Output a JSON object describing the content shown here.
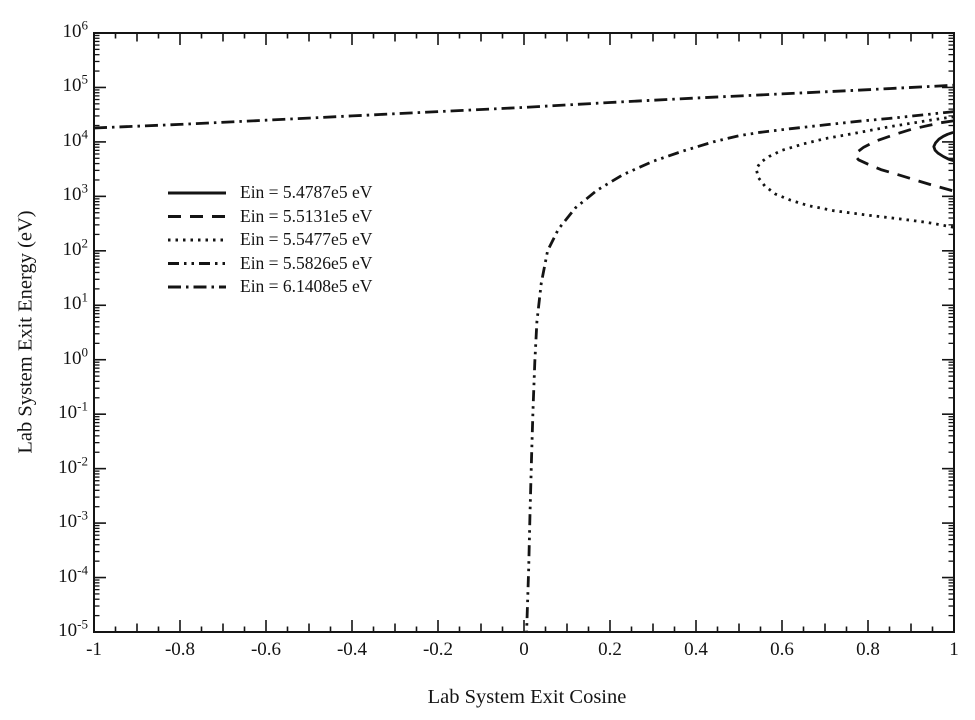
{
  "figure": {
    "background": "#ffffff",
    "ink": "#141414"
  },
  "chart_data": {
    "type": "line",
    "title": "",
    "xlabel": "Lab System Exit Cosine",
    "ylabel": "Lab System Exit Energy (eV)",
    "grid": false,
    "legend_position": "inside upper-left",
    "x_axis": {
      "min": -1,
      "max": 1,
      "major_step": 0.2,
      "medium_step": 0.1,
      "minor_step": 0.05,
      "tick_labels": [
        "-1",
        "-0.8",
        "-0.6",
        "-0.4",
        "-0.2",
        "0",
        "0.2",
        "0.4",
        "0.6",
        "0.8",
        "1"
      ]
    },
    "y_axis": {
      "scale": "log",
      "base": "10",
      "min_exp": -5,
      "max_exp": 6,
      "exponents": [
        6,
        5,
        4,
        3,
        2,
        1,
        0,
        -1,
        -2,
        -3,
        -4,
        -5
      ]
    },
    "series": [
      {
        "name": "Ein = 5.4787e5 eV",
        "style": "solid",
        "points": [
          [
            1,
            15000
          ],
          [
            0.995,
            14700
          ],
          [
            0.985,
            13800
          ],
          [
            0.975,
            12700
          ],
          [
            0.965,
            11200
          ],
          [
            0.957,
            9600
          ],
          [
            0.953,
            8200
          ],
          [
            0.956,
            7000
          ],
          [
            0.963,
            6200
          ],
          [
            0.975,
            5400
          ],
          [
            0.988,
            4800
          ],
          [
            1,
            4500
          ]
        ]
      },
      {
        "name": "Ein = 5.5131e5 eV",
        "style": "dashed",
        "points": [
          [
            1,
            24500
          ],
          [
            0.97,
            22500
          ],
          [
            0.94,
            20000
          ],
          [
            0.9,
            17000
          ],
          [
            0.86,
            13500
          ],
          [
            0.82,
            10500
          ],
          [
            0.79,
            8000
          ],
          [
            0.773,
            6300
          ],
          [
            0.77,
            5600
          ],
          [
            0.778,
            4700
          ],
          [
            0.8,
            3900
          ],
          [
            0.83,
            3100
          ],
          [
            0.87,
            2500
          ],
          [
            0.91,
            2000
          ],
          [
            0.95,
            1600
          ],
          [
            1,
            1250
          ]
        ]
      },
      {
        "name": "Ein = 5.5477e5 eV",
        "style": "dotted",
        "points": [
          [
            1,
            29000
          ],
          [
            0.95,
            25500
          ],
          [
            0.9,
            22000
          ],
          [
            0.85,
            19000
          ],
          [
            0.8,
            16000
          ],
          [
            0.75,
            13500
          ],
          [
            0.7,
            11500
          ],
          [
            0.65,
            9200
          ],
          [
            0.6,
            7000
          ],
          [
            0.57,
            5400
          ],
          [
            0.55,
            4200
          ],
          [
            0.54,
            3200
          ],
          [
            0.545,
            2200
          ],
          [
            0.56,
            1550
          ],
          [
            0.585,
            1100
          ],
          [
            0.62,
            850
          ],
          [
            0.66,
            680
          ],
          [
            0.72,
            545
          ],
          [
            0.8,
            450
          ],
          [
            0.88,
            380
          ],
          [
            0.94,
            330
          ],
          [
            1,
            270
          ]
        ]
      },
      {
        "name": "Ein = 5.5826e5 eV",
        "style": "dash-dot-dot",
        "points": [
          [
            1,
            36000
          ],
          [
            0.93,
            31500
          ],
          [
            0.86,
            27500
          ],
          [
            0.78,
            24000
          ],
          [
            0.7,
            20500
          ],
          [
            0.62,
            17500
          ],
          [
            0.55,
            15000
          ],
          [
            0.5,
            13000
          ],
          [
            0.44,
            10000
          ],
          [
            0.37,
            6800
          ],
          [
            0.3,
            4400
          ],
          [
            0.23,
            2500
          ],
          [
            0.17,
            1300
          ],
          [
            0.12,
            620
          ],
          [
            0.08,
            250
          ],
          [
            0.055,
            100
          ],
          [
            0.04,
            25
          ],
          [
            0.03,
            5
          ],
          [
            0.025,
            0.9
          ],
          [
            0.021,
            0.12
          ],
          [
            0.018,
            0.02
          ],
          [
            0.014,
            0.0015
          ],
          [
            0.011,
            0.00015
          ],
          [
            0.006,
            1e-05
          ]
        ]
      },
      {
        "name": "Ein = 6.1408e5 eV",
        "style": "dash-dot",
        "points": [
          [
            -1,
            18000
          ],
          [
            -0.8,
            21000
          ],
          [
            -0.6,
            25000
          ],
          [
            -0.4,
            30000
          ],
          [
            -0.2,
            36000
          ],
          [
            0,
            43000
          ],
          [
            0.2,
            53000
          ],
          [
            0.4,
            64000
          ],
          [
            0.6,
            76000
          ],
          [
            0.8,
            91000
          ],
          [
            1,
            110000
          ]
        ]
      }
    ]
  }
}
